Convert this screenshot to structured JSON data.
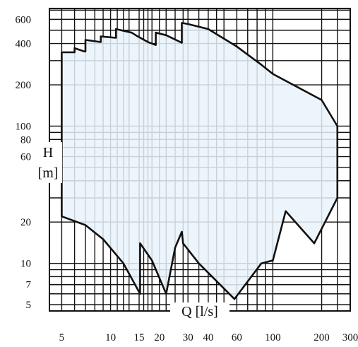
{
  "chart_data": {
    "type": "area",
    "title": "",
    "xlabel": "Q [l/s]",
    "ylabel_lines": [
      "H",
      "[m]"
    ],
    "x_scale": "log",
    "y_scale": "log",
    "xlim": [
      4.2,
      300
    ],
    "ylim": [
      4.5,
      720
    ],
    "grid": true,
    "x_ticks": [
      {
        "value": 5,
        "label": "5"
      },
      {
        "value": 10,
        "label": "10"
      },
      {
        "value": 15,
        "label": "15"
      },
      {
        "value": 20,
        "label": "20"
      },
      {
        "value": 30,
        "label": "30"
      },
      {
        "value": 40,
        "label": "40"
      },
      {
        "value": 60,
        "label": "60"
      },
      {
        "value": 100,
        "label": "100"
      },
      {
        "value": 200,
        "label": "200"
      },
      {
        "value": 300,
        "label": "300"
      }
    ],
    "y_ticks": [
      {
        "value": 5,
        "label": "5"
      },
      {
        "value": 7,
        "label": "7"
      },
      {
        "value": 10,
        "label": "10"
      },
      {
        "value": 20,
        "label": "20"
      },
      {
        "value": 60,
        "label": "60"
      },
      {
        "value": 80,
        "label": "80"
      },
      {
        "value": 100,
        "label": "100"
      },
      {
        "value": 200,
        "label": "200"
      },
      {
        "value": 400,
        "label": "400"
      },
      {
        "value": 600,
        "label": "600"
      }
    ],
    "x_gridlines": [
      5,
      6,
      7,
      8,
      9,
      10,
      11,
      12,
      13,
      15,
      16,
      17,
      18,
      20,
      22,
      25,
      28,
      30,
      35,
      40,
      45,
      50,
      60,
      70,
      80,
      90,
      100,
      200,
      250
    ],
    "y_gridlines": [
      5,
      6,
      7,
      8,
      9,
      10,
      20,
      30,
      40,
      50,
      60,
      70,
      80,
      90,
      100,
      200,
      300,
      400,
      500,
      600,
      700
    ],
    "envelope": {
      "name": "",
      "fill": "#e9f3fa",
      "stroke": "#111111",
      "points": [
        [
          5.0,
          22
        ],
        [
          5.0,
          345
        ],
        [
          6.0,
          345
        ],
        [
          6.0,
          370
        ],
        [
          6.9,
          350
        ],
        [
          7.0,
          350
        ],
        [
          7.0,
          425
        ],
        [
          8.7,
          410
        ],
        [
          8.7,
          450
        ],
        [
          10.8,
          440
        ],
        [
          10.8,
          510
        ],
        [
          13.5,
          480
        ],
        [
          14.5,
          455
        ],
        [
          17.0,
          410
        ],
        [
          19.0,
          390
        ],
        [
          19.0,
          480
        ],
        [
          22.0,
          460
        ],
        [
          27.5,
          405
        ],
        [
          27.5,
          565
        ],
        [
          30.0,
          555
        ],
        [
          40.0,
          510
        ],
        [
          60.0,
          380
        ],
        [
          85.0,
          280
        ],
        [
          100.0,
          240
        ],
        [
          200.0,
          155
        ],
        [
          250.0,
          100
        ],
        [
          250.0,
          30
        ],
        [
          180.0,
          14
        ],
        [
          120.0,
          24
        ],
        [
          100.0,
          10.5
        ],
        [
          85.0,
          10
        ],
        [
          58.0,
          5.5
        ],
        [
          35.0,
          10
        ],
        [
          28.0,
          14
        ],
        [
          27.5,
          17
        ],
        [
          25.0,
          13
        ],
        [
          22.0,
          6
        ],
        [
          18.0,
          10.5
        ],
        [
          15.2,
          14
        ],
        [
          15.2,
          6
        ],
        [
          12.0,
          10
        ],
        [
          9.0,
          15
        ],
        [
          7.0,
          19
        ],
        [
          5.0,
          22
        ]
      ]
    }
  },
  "colors": {
    "background": "#ffffff",
    "grid": "#111111",
    "fill": "#e9f3fa",
    "outline": "#111111"
  }
}
